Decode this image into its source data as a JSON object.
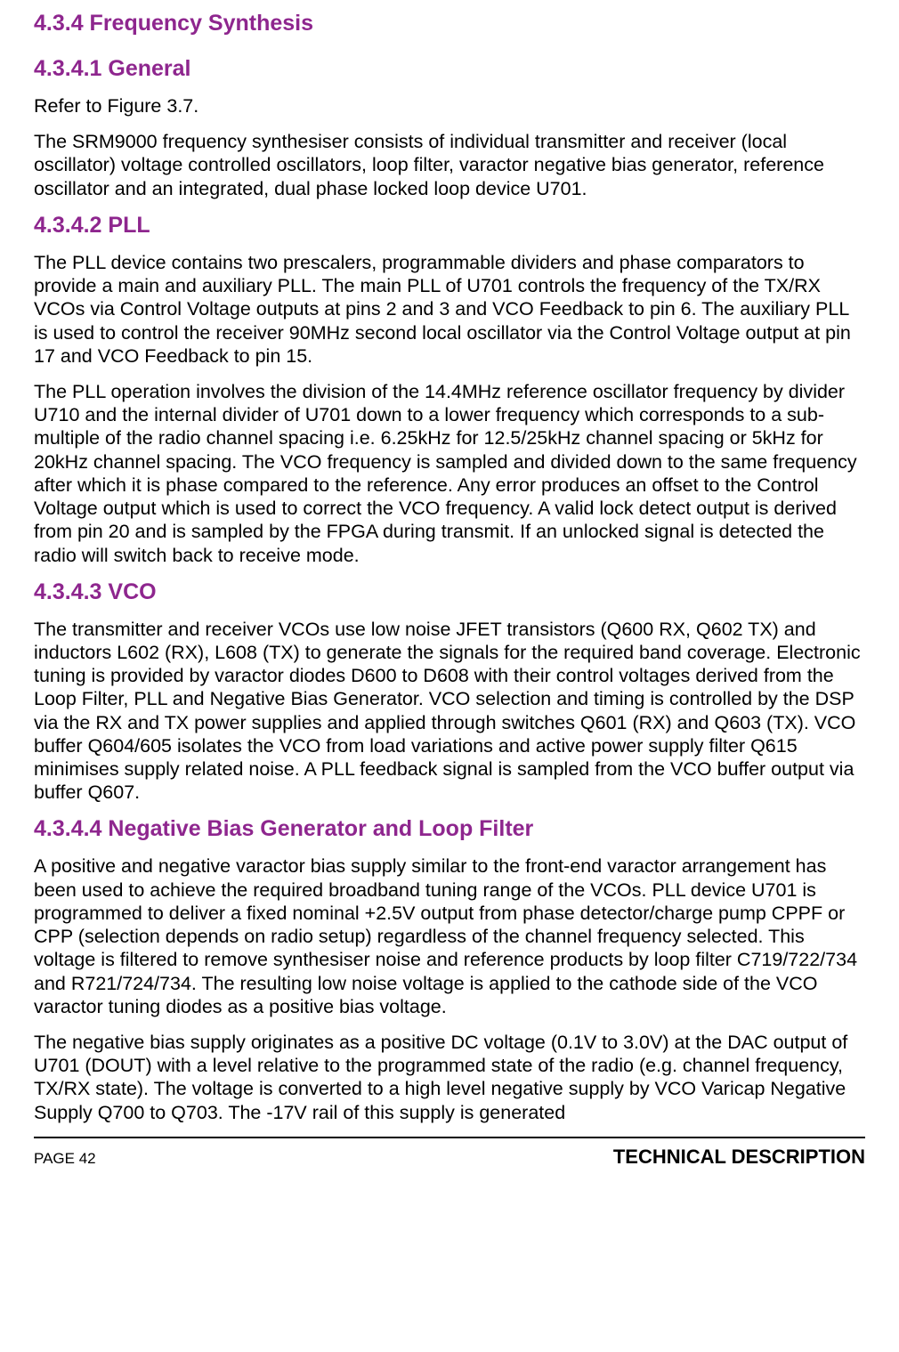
{
  "colors": {
    "heading": "#8e268e",
    "text": "#000000",
    "background": "#ffffff"
  },
  "headings": {
    "s434": "4.3.4 Frequency Synthesis",
    "s4341": "4.3.4.1 General",
    "s4342": "4.3.4.2 PLL",
    "s4343": "4.3.4.3 VCO",
    "s4344": "4.3.4.4 Negative Bias Generator and Loop Filter"
  },
  "paragraphs": {
    "p1": "Refer to Figure 3.7.",
    "p2": "The SRM9000 frequency synthesiser consists of individual transmitter and receiver (local oscillator) voltage controlled oscillators, loop filter, varactor negative bias generator, reference oscillator and an integrated, dual phase locked loop device U701.",
    "p3": "The PLL device contains two prescalers, programmable dividers and phase comparators to provide a main and auxiliary PLL. The main PLL of U701 controls the frequency of the TX/RX VCOs via Control Voltage outputs at pins 2 and 3 and VCO Feedback to pin 6. The auxiliary PLL is used to control the receiver 90MHz second local oscillator via the Control Voltage output at pin 17 and VCO Feedback to pin 15.",
    "p4": "The PLL operation involves the division of the 14.4MHz reference oscillator frequency by divider U710 and the internal divider of U701 down to a lower frequency which corresponds to a sub-multiple of the radio channel spacing i.e. 6.25kHz for 12.5/25kHz channel spacing or 5kHz for 20kHz channel spacing. The VCO frequency is sampled and divided down to the same frequency after which it is phase compared to the reference. Any error produces an offset to the Control Voltage output which is used to correct the VCO frequency. A valid lock detect output is derived from pin 20 and is sampled by the FPGA during transmit. If an unlocked signal is detected the radio will switch back to receive mode.",
    "p5": "The transmitter and receiver VCOs use low noise JFET transistors (Q600 RX, Q602 TX) and inductors L602 (RX), L608 (TX) to generate the signals for the required band coverage. Electronic tuning is provided by varactor diodes D600 to D608 with their control voltages derived from the Loop Filter, PLL and Negative Bias Generator. VCO selection and timing is controlled by the DSP via the RX and TX power supplies and applied through switches Q601 (RX) and Q603 (TX). VCO buffer Q604/605 isolates the VCO from load variations and active power supply filter Q615 minimises supply related noise. A PLL feedback signal is sampled from the VCO buffer output via buffer Q607.",
    "p6": "A positive and negative varactor bias supply similar to the front-end varactor arrangement has been used to achieve the required broadband tuning range of the VCOs. PLL device U701 is programmed to deliver a fixed nominal +2.5V output from phase detector/charge pump CPPF or CPP (selection depends on radio setup) regardless of the channel frequency selected. This voltage is filtered to remove synthesiser noise and reference products by loop filter C719/722/734 and R721/724/734. The resulting low noise voltage is applied to the cathode side of the VCO varactor tuning diodes as a positive bias voltage.",
    "p7": "The negative bias supply originates as a positive DC voltage (0.1V to 3.0V) at the DAC output of U701 (DOUT) with a level relative to the programmed state of the radio (e.g. channel frequency, TX/RX state). The voltage is converted to a high level negative supply by VCO Varicap Negative Supply Q700 to Q703. The -17V rail of this supply is generated"
  },
  "footer": {
    "left": "PAGE 42",
    "right": "TECHNICAL DESCRIPTION"
  }
}
